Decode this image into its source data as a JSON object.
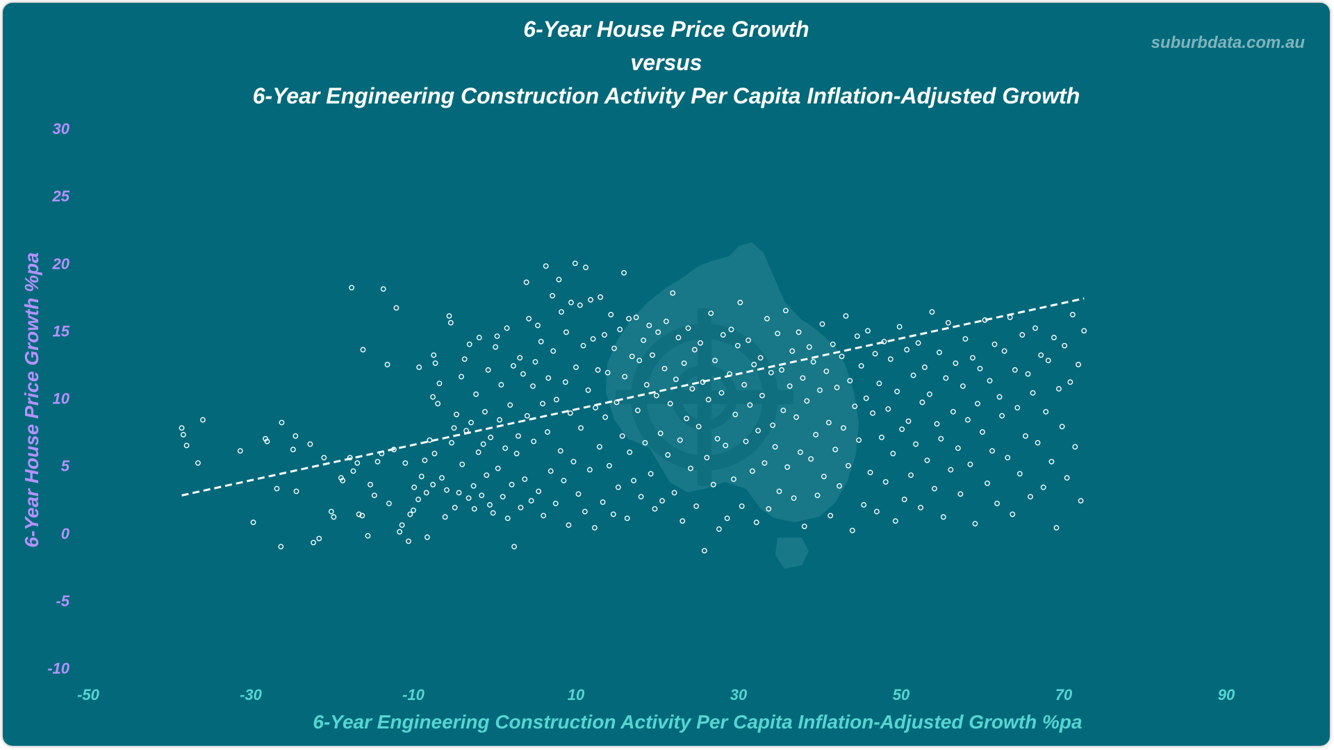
{
  "brand": "suburbdata.com.au",
  "colors": {
    "background": "#03697a",
    "title": "#ffffff",
    "y_axis": "#b691ff",
    "x_axis": "#56d6d3",
    "points": "#ffffff",
    "trendline": "#ffffff",
    "watermark": "#2a8592"
  },
  "watermark_icon": "australia-map-icon",
  "chart_data": {
    "type": "scatter",
    "title": [
      "6-Year House Price Growth",
      "versus",
      "6-Year Engineering Construction Activity Per Capita Inflation-Adjusted Growth"
    ],
    "xlabel": "6-Year Engineering Construction Activity Per Capita Inflation-Adjusted Growth %pa",
    "ylabel": "6-Year House Price Growth %pa",
    "xlim": [
      -50,
      90
    ],
    "ylim": [
      -10,
      30
    ],
    "xticks": [
      -50,
      -30,
      -10,
      10,
      30,
      50,
      70,
      90
    ],
    "yticks": [
      -10,
      -5,
      0,
      5,
      10,
      15,
      20,
      25,
      30
    ],
    "grid": false,
    "legend": "none",
    "marker": "hollow-circle",
    "trendline": {
      "style": "dashed",
      "start": [
        -38.5,
        2.8
      ],
      "end": [
        72.5,
        17.4
      ]
    },
    "points": [
      [
        -38.5,
        7.8
      ],
      [
        -38.3,
        7.3
      ],
      [
        -37.9,
        6.5
      ],
      [
        -36.5,
        5.2
      ],
      [
        -35.9,
        8.4
      ],
      [
        -31.3,
        6.1
      ],
      [
        -29.7,
        0.8
      ],
      [
        -28.2,
        7.0
      ],
      [
        -28.0,
        6.8
      ],
      [
        -26.8,
        3.3
      ],
      [
        -26.2,
        8.2
      ],
      [
        -26.3,
        -1.0
      ],
      [
        -24.8,
        6.2
      ],
      [
        -24.4,
        3.1
      ],
      [
        -24.5,
        7.2
      ],
      [
        -22.7,
        6.6
      ],
      [
        -22.3,
        -0.7
      ],
      [
        -21.6,
        -0.4
      ],
      [
        -21.0,
        5.6
      ],
      [
        -20.1,
        1.6
      ],
      [
        -19.8,
        1.2
      ],
      [
        -18.9,
        4.1
      ],
      [
        -18.7,
        3.9
      ],
      [
        -17.8,
        5.6
      ],
      [
        -17.6,
        18.2
      ],
      [
        -17.4,
        4.6
      ],
      [
        -16.9,
        5.2
      ],
      [
        -16.7,
        1.4
      ],
      [
        -16.2,
        13.6
      ],
      [
        -16.3,
        1.3
      ],
      [
        -15.6,
        -0.2
      ],
      [
        -15.3,
        3.6
      ],
      [
        -14.8,
        2.8
      ],
      [
        -14.4,
        5.3
      ],
      [
        -13.9,
        5.9
      ],
      [
        -13.7,
        18.1
      ],
      [
        -13.2,
        12.5
      ],
      [
        -13.0,
        2.2
      ],
      [
        -12.4,
        6.2
      ],
      [
        -12.1,
        16.7
      ],
      [
        -11.7,
        0.1
      ],
      [
        -11.4,
        0.6
      ],
      [
        -11.0,
        5.2
      ],
      [
        -10.6,
        -0.6
      ],
      [
        -10.4,
        1.4
      ],
      [
        -10.0,
        1.7
      ],
      [
        -9.9,
        3.4
      ],
      [
        -9.3,
        12.3
      ],
      [
        -9.0,
        4.2
      ],
      [
        -9.4,
        2.5
      ],
      [
        -8.6,
        5.4
      ],
      [
        -8.4,
        3.0
      ],
      [
        -8.3,
        -0.3
      ],
      [
        -8.0,
        6.9
      ],
      [
        -7.6,
        10.1
      ],
      [
        -7.5,
        13.2
      ],
      [
        -7.6,
        3.6
      ],
      [
        -7.4,
        5.9
      ],
      [
        -7.3,
        12.6
      ],
      [
        -7.0,
        9.6
      ],
      [
        -6.8,
        11.1
      ],
      [
        -6.5,
        4.1
      ],
      [
        -6.1,
        1.2
      ],
      [
        -5.9,
        3.2
      ],
      [
        -5.6,
        16.1
      ],
      [
        -5.4,
        15.6
      ],
      [
        -5.3,
        6.7
      ],
      [
        -5.0,
        7.8
      ],
      [
        -4.9,
        1.9
      ],
      [
        -4.7,
        8.8
      ],
      [
        -4.4,
        3.0
      ],
      [
        -4.1,
        11.6
      ],
      [
        -4.0,
        5.1
      ],
      [
        -3.7,
        12.9
      ],
      [
        -3.5,
        7.6
      ],
      [
        -3.2,
        2.6
      ],
      [
        -3.1,
        14.0
      ],
      [
        -2.9,
        8.2
      ],
      [
        -2.6,
        3.5
      ],
      [
        -2.5,
        1.8
      ],
      [
        -2.3,
        10.3
      ],
      [
        -2.0,
        6.0
      ],
      [
        -1.9,
        14.5
      ],
      [
        -1.6,
        2.8
      ],
      [
        -1.4,
        6.6
      ],
      [
        -1.2,
        9.0
      ],
      [
        -1.0,
        4.3
      ],
      [
        -0.8,
        12.1
      ],
      [
        -0.6,
        2.1
      ],
      [
        -0.5,
        7.1
      ],
      [
        -0.2,
        1.5
      ],
      [
        0.1,
        13.8
      ],
      [
        0.3,
        14.6
      ],
      [
        0.4,
        4.8
      ],
      [
        0.6,
        8.4
      ],
      [
        0.8,
        11.0
      ],
      [
        1.0,
        2.7
      ],
      [
        1.3,
        6.3
      ],
      [
        1.5,
        15.2
      ],
      [
        1.6,
        1.1
      ],
      [
        1.9,
        9.5
      ],
      [
        2.1,
        3.6
      ],
      [
        2.3,
        12.4
      ],
      [
        2.4,
        -1.0
      ],
      [
        2.7,
        5.9
      ],
      [
        2.9,
        7.2
      ],
      [
        3.1,
        13.0
      ],
      [
        3.2,
        1.9
      ],
      [
        3.5,
        11.8
      ],
      [
        3.7,
        4.0
      ],
      [
        3.9,
        18.6
      ],
      [
        4.0,
        8.7
      ],
      [
        4.2,
        15.9
      ],
      [
        4.5,
        2.4
      ],
      [
        4.7,
        10.9
      ],
      [
        4.8,
        6.8
      ],
      [
        5.0,
        12.7
      ],
      [
        5.3,
        15.4
      ],
      [
        5.4,
        3.1
      ],
      [
        5.7,
        14.2
      ],
      [
        5.9,
        9.6
      ],
      [
        6.0,
        1.3
      ],
      [
        6.3,
        19.8
      ],
      [
        6.5,
        7.5
      ],
      [
        6.6,
        11.5
      ],
      [
        6.9,
        4.6
      ],
      [
        7.1,
        17.6
      ],
      [
        7.2,
        13.5
      ],
      [
        7.5,
        2.2
      ],
      [
        7.6,
        9.9
      ],
      [
        7.9,
        18.8
      ],
      [
        8.1,
        6.1
      ],
      [
        8.2,
        16.4
      ],
      [
        8.5,
        3.9
      ],
      [
        8.7,
        11.2
      ],
      [
        8.8,
        14.9
      ],
      [
        9.1,
        0.6
      ],
      [
        9.3,
        8.9
      ],
      [
        9.4,
        17.1
      ],
      [
        9.7,
        5.3
      ],
      [
        9.9,
        20.0
      ],
      [
        10.0,
        12.3
      ],
      [
        10.3,
        2.9
      ],
      [
        10.5,
        16.9
      ],
      [
        10.6,
        7.8
      ],
      [
        10.9,
        13.9
      ],
      [
        11.1,
        1.6
      ],
      [
        11.2,
        19.7
      ],
      [
        11.5,
        10.6
      ],
      [
        11.7,
        4.7
      ],
      [
        11.8,
        17.3
      ],
      [
        12.1,
        14.4
      ],
      [
        12.3,
        0.4
      ],
      [
        12.4,
        9.3
      ],
      [
        12.7,
        12.1
      ],
      [
        12.9,
        6.4
      ],
      [
        13.0,
        17.5
      ],
      [
        13.3,
        2.3
      ],
      [
        13.5,
        14.7
      ],
      [
        13.6,
        8.6
      ],
      [
        13.9,
        11.9
      ],
      [
        14.1,
        5.0
      ],
      [
        14.3,
        16.2
      ],
      [
        14.6,
        1.4
      ],
      [
        14.7,
        13.7
      ],
      [
        15.0,
        9.7
      ],
      [
        15.2,
        3.4
      ],
      [
        15.4,
        15.1
      ],
      [
        15.7,
        7.2
      ],
      [
        15.9,
        19.3
      ],
      [
        16.0,
        11.6
      ],
      [
        16.3,
        1.1
      ],
      [
        16.5,
        15.9
      ],
      [
        16.6,
        6.0
      ],
      [
        16.9,
        13.1
      ],
      [
        17.1,
        3.9
      ],
      [
        17.4,
        16.0
      ],
      [
        17.6,
        9.1
      ],
      [
        17.8,
        12.8
      ],
      [
        18.0,
        2.7
      ],
      [
        18.3,
        14.3
      ],
      [
        18.5,
        6.7
      ],
      [
        18.7,
        11.0
      ],
      [
        19.0,
        15.4
      ],
      [
        19.2,
        4.4
      ],
      [
        19.4,
        13.2
      ],
      [
        19.7,
        1.8
      ],
      [
        19.9,
        10.2
      ],
      [
        20.1,
        14.9
      ],
      [
        20.4,
        7.4
      ],
      [
        20.6,
        2.4
      ],
      [
        20.9,
        12.2
      ],
      [
        21.1,
        15.7
      ],
      [
        21.3,
        5.8
      ],
      [
        21.6,
        9.6
      ],
      [
        21.9,
        17.8
      ],
      [
        22.1,
        3.0
      ],
      [
        22.3,
        11.4
      ],
      [
        22.6,
        14.5
      ],
      [
        22.8,
        6.9
      ],
      [
        23.1,
        0.9
      ],
      [
        23.3,
        12.6
      ],
      [
        23.6,
        8.5
      ],
      [
        23.8,
        15.2
      ],
      [
        24.1,
        4.8
      ],
      [
        24.3,
        10.7
      ],
      [
        24.6,
        13.6
      ],
      [
        24.8,
        2.0
      ],
      [
        25.1,
        7.9
      ],
      [
        25.3,
        14.1
      ],
      [
        25.6,
        11.2
      ],
      [
        25.8,
        -1.3
      ],
      [
        26.1,
        5.6
      ],
      [
        26.3,
        9.9
      ],
      [
        26.6,
        16.3
      ],
      [
        26.9,
        3.6
      ],
      [
        27.1,
        12.8
      ],
      [
        27.4,
        7.0
      ],
      [
        27.6,
        0.3
      ],
      [
        27.9,
        10.4
      ],
      [
        28.1,
        14.7
      ],
      [
        28.4,
        6.5
      ],
      [
        28.6,
        1.1
      ],
      [
        28.9,
        11.8
      ],
      [
        29.1,
        15.1
      ],
      [
        29.4,
        4.0
      ],
      [
        29.6,
        8.8
      ],
      [
        29.9,
        13.9
      ],
      [
        30.2,
        17.1
      ],
      [
        30.4,
        2.0
      ],
      [
        30.7,
        11.0
      ],
      [
        30.9,
        6.8
      ],
      [
        31.2,
        14.3
      ],
      [
        31.4,
        9.5
      ],
      [
        31.7,
        4.6
      ],
      [
        31.9,
        12.5
      ],
      [
        32.2,
        0.8
      ],
      [
        32.4,
        7.6
      ],
      [
        32.7,
        13.0
      ],
      [
        32.9,
        10.2
      ],
      [
        33.2,
        5.2
      ],
      [
        33.5,
        15.9
      ],
      [
        33.7,
        1.8
      ],
      [
        34.0,
        11.9
      ],
      [
        34.2,
        8.0
      ],
      [
        34.5,
        6.4
      ],
      [
        34.8,
        14.8
      ],
      [
        35.0,
        3.1
      ],
      [
        35.3,
        12.1
      ],
      [
        35.5,
        9.1
      ],
      [
        35.8,
        16.5
      ],
      [
        36.0,
        4.9
      ],
      [
        36.3,
        10.9
      ],
      [
        36.6,
        13.5
      ],
      [
        36.8,
        2.6
      ],
      [
        37.1,
        8.6
      ],
      [
        37.4,
        14.9
      ],
      [
        37.6,
        6.0
      ],
      [
        37.9,
        11.5
      ],
      [
        38.1,
        0.5
      ],
      [
        38.4,
        9.8
      ],
      [
        38.7,
        13.8
      ],
      [
        38.9,
        5.5
      ],
      [
        39.2,
        12.7
      ],
      [
        39.5,
        7.3
      ],
      [
        39.7,
        2.8
      ],
      [
        40.0,
        10.6
      ],
      [
        40.3,
        15.5
      ],
      [
        40.5,
        4.2
      ],
      [
        40.8,
        12.0
      ],
      [
        41.1,
        8.2
      ],
      [
        41.3,
        1.3
      ],
      [
        41.6,
        14.0
      ],
      [
        41.9,
        6.2
      ],
      [
        42.1,
        10.8
      ],
      [
        42.4,
        3.5
      ],
      [
        42.7,
        13.1
      ],
      [
        42.9,
        7.8
      ],
      [
        43.2,
        16.1
      ],
      [
        43.5,
        5.0
      ],
      [
        43.7,
        11.3
      ],
      [
        44.0,
        0.2
      ],
      [
        44.3,
        9.4
      ],
      [
        44.6,
        14.6
      ],
      [
        44.8,
        6.9
      ],
      [
        45.1,
        12.4
      ],
      [
        45.4,
        2.1
      ],
      [
        45.7,
        10.0
      ],
      [
        45.9,
        15.0
      ],
      [
        46.2,
        4.5
      ],
      [
        46.5,
        8.9
      ],
      [
        46.8,
        13.3
      ],
      [
        47.0,
        1.6
      ],
      [
        47.3,
        11.1
      ],
      [
        47.6,
        7.1
      ],
      [
        47.9,
        14.2
      ],
      [
        48.1,
        3.8
      ],
      [
        48.4,
        9.2
      ],
      [
        48.7,
        12.9
      ],
      [
        49.0,
        5.9
      ],
      [
        49.3,
        0.9
      ],
      [
        49.5,
        10.5
      ],
      [
        49.8,
        15.3
      ],
      [
        50.1,
        7.7
      ],
      [
        50.4,
        2.5
      ],
      [
        50.7,
        13.6
      ],
      [
        50.9,
        8.3
      ],
      [
        51.2,
        4.3
      ],
      [
        51.5,
        11.7
      ],
      [
        51.8,
        6.6
      ],
      [
        52.1,
        14.1
      ],
      [
        52.4,
        1.9
      ],
      [
        52.6,
        9.7
      ],
      [
        52.9,
        12.3
      ],
      [
        53.2,
        5.4
      ],
      [
        53.5,
        10.3
      ],
      [
        53.8,
        16.4
      ],
      [
        54.1,
        3.3
      ],
      [
        54.4,
        8.1
      ],
      [
        54.7,
        13.4
      ],
      [
        54.9,
        7.0
      ],
      [
        55.2,
        1.2
      ],
      [
        55.5,
        11.5
      ],
      [
        55.8,
        15.6
      ],
      [
        56.1,
        4.7
      ],
      [
        56.4,
        9.0
      ],
      [
        56.7,
        12.6
      ],
      [
        57.0,
        6.3
      ],
      [
        57.3,
        2.9
      ],
      [
        57.6,
        10.9
      ],
      [
        57.9,
        14.4
      ],
      [
        58.2,
        8.4
      ],
      [
        58.5,
        5.1
      ],
      [
        58.8,
        13.0
      ],
      [
        59.1,
        0.7
      ],
      [
        59.4,
        9.6
      ],
      [
        59.7,
        12.2
      ],
      [
        60.0,
        7.5
      ],
      [
        60.3,
        15.8
      ],
      [
        60.6,
        3.7
      ],
      [
        60.9,
        11.3
      ],
      [
        61.2,
        6.1
      ],
      [
        61.5,
        14.0
      ],
      [
        61.8,
        2.2
      ],
      [
        62.1,
        10.1
      ],
      [
        62.4,
        8.7
      ],
      [
        62.7,
        13.5
      ],
      [
        63.1,
        5.6
      ],
      [
        63.4,
        16.0
      ],
      [
        63.7,
        1.4
      ],
      [
        64.0,
        12.1
      ],
      [
        64.3,
        9.3
      ],
      [
        64.6,
        4.4
      ],
      [
        64.9,
        14.7
      ],
      [
        65.3,
        7.2
      ],
      [
        65.6,
        11.8
      ],
      [
        65.9,
        2.7
      ],
      [
        66.2,
        10.4
      ],
      [
        66.5,
        15.2
      ],
      [
        66.8,
        6.7
      ],
      [
        67.2,
        13.2
      ],
      [
        67.5,
        3.4
      ],
      [
        67.8,
        9.0
      ],
      [
        68.1,
        12.8
      ],
      [
        68.5,
        5.3
      ],
      [
        68.8,
        14.5
      ],
      [
        69.1,
        0.4
      ],
      [
        69.4,
        10.7
      ],
      [
        69.8,
        7.9
      ],
      [
        70.1,
        13.9
      ],
      [
        70.4,
        4.1
      ],
      [
        70.8,
        11.2
      ],
      [
        71.1,
        16.2
      ],
      [
        71.4,
        6.4
      ],
      [
        71.8,
        12.5
      ],
      [
        72.1,
        2.4
      ],
      [
        72.5,
        15.0
      ]
    ]
  }
}
